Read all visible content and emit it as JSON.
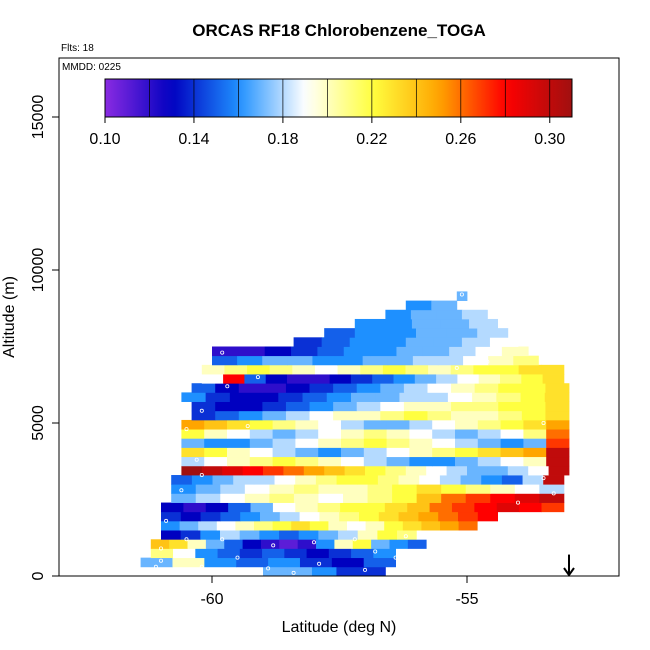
{
  "chart_data": {
    "type": "heatmap",
    "title": "ORCAS RF18 Chlorobenzene_TOGA",
    "annotations": [
      "Flts: 18",
      "MMDD: 0225"
    ],
    "xlabel": "Latitude (deg N)",
    "ylabel": "Altitude (m)",
    "xlim": [
      -63,
      -52
    ],
    "ylim": [
      0,
      17000
    ],
    "x_ticks": [
      -60,
      -55
    ],
    "y_ticks": [
      0,
      5000,
      10000,
      15000
    ],
    "colorbar": {
      "vmin": 0.1,
      "vmax": 0.31,
      "tick_values": [
        0.1,
        0.14,
        0.18,
        0.22,
        0.26,
        0.3
      ],
      "tick_labels": [
        "0.10",
        "0.14",
        "0.18",
        "0.22",
        "0.26",
        "0.30"
      ],
      "colors": [
        "#8a2be2",
        "#0000c0",
        "#1e90ff",
        "#ffffff",
        "#ffff40",
        "#ffa500",
        "#ff0000",
        "#a01010"
      ]
    },
    "arrow_marker": {
      "lat": -53.0,
      "alt": 700
    },
    "bands": [
      {
        "alt_lo": 0,
        "alt_hi": 300,
        "lat_lo": -59.0,
        "lat_hi": -56.6,
        "values": [
          0.17,
          0.17,
          0.16,
          0.14,
          0.14
        ]
      },
      {
        "alt_lo": 300,
        "alt_hi": 600,
        "lat_lo": -61.4,
        "lat_hi": -56.4,
        "values": [
          0.17,
          0.2,
          0.16,
          0.15,
          0.16,
          0.14,
          0.13,
          0.15
        ]
      },
      {
        "alt_lo": 600,
        "alt_hi": 900,
        "lat_lo": -61.2,
        "lat_hi": -56.4,
        "values": [
          0.21,
          0.19,
          0.16,
          0.15,
          0.14,
          0.15,
          0.14,
          0.13,
          0.14,
          0.15,
          0.16
        ]
      },
      {
        "alt_lo": 900,
        "alt_hi": 1200,
        "lat_lo": -61.2,
        "lat_hi": -55.8,
        "values": [
          0.24,
          0.23,
          0.2,
          0.17,
          0.15,
          0.13,
          0.12,
          0.11,
          0.12,
          0.16,
          0.2,
          0.22,
          0.17,
          0.16,
          0.15
        ]
      },
      {
        "alt_lo": 1200,
        "alt_hi": 1500,
        "lat_lo": -61.0,
        "lat_hi": -55.6,
        "values": [
          0.13,
          0.14,
          0.16,
          0.18,
          0.17,
          0.16,
          0.15,
          0.16,
          0.17,
          0.18,
          0.2,
          0.22,
          0.21,
          0.19
        ]
      },
      {
        "alt_lo": 1500,
        "alt_hi": 1800,
        "lat_lo": -61.0,
        "lat_hi": -54.8,
        "values": [
          0.16,
          0.17,
          0.18,
          0.19,
          0.2,
          0.21,
          0.22,
          0.23,
          0.22,
          0.2,
          0.19,
          0.2,
          0.22,
          0.23,
          0.24,
          0.25,
          0.26
        ]
      },
      {
        "alt_lo": 1800,
        "alt_hi": 2100,
        "lat_lo": -61.0,
        "lat_hi": -54.4,
        "values": [
          0.14,
          0.13,
          0.14,
          0.15,
          0.16,
          0.17,
          0.18,
          0.19,
          0.2,
          0.21,
          0.22,
          0.23,
          0.24,
          0.25,
          0.26,
          0.27,
          0.28
        ]
      },
      {
        "alt_lo": 2100,
        "alt_hi": 2400,
        "lat_lo": -61.0,
        "lat_hi": -53.1,
        "values": [
          0.13,
          0.12,
          0.13,
          0.15,
          0.17,
          0.19,
          0.2,
          0.21,
          0.22,
          0.22,
          0.23,
          0.24,
          0.26,
          0.27,
          0.28,
          0.29,
          0.28,
          0.27
        ]
      },
      {
        "alt_lo": 2400,
        "alt_hi": 2700,
        "lat_lo": -60.8,
        "lat_hi": -53.1,
        "values": [
          0.17,
          0.18,
          0.19,
          0.2,
          0.21,
          0.2,
          0.19,
          0.2,
          0.21,
          0.22,
          0.24,
          0.26,
          0.27,
          0.28,
          0.29,
          0.3
        ]
      },
      {
        "alt_lo": 2700,
        "alt_hi": 3000,
        "lat_lo": -60.8,
        "lat_hi": -53.1,
        "values": [
          0.16,
          0.17,
          0.18,
          0.19,
          0.2,
          0.21,
          0.2,
          0.2,
          0.21,
          0.22,
          0.23,
          0.22,
          0.21,
          0.2,
          0.19,
          0.18
        ]
      },
      {
        "alt_lo": 3000,
        "alt_hi": 3300,
        "lat_lo": -60.8,
        "lat_hi": -53.1,
        "values": [
          0.15,
          0.16,
          0.17,
          0.18,
          0.18,
          0.19,
          0.2,
          0.21,
          0.22,
          0.22,
          0.21,
          0.2,
          0.19,
          0.18,
          0.17,
          0.16,
          0.15,
          0.18,
          0.3
        ]
      },
      {
        "alt_lo": 3300,
        "alt_hi": 3600,
        "lat_lo": -60.6,
        "lat_hi": -53.0,
        "values": [
          0.31,
          0.3,
          0.29,
          0.28,
          0.27,
          0.26,
          0.25,
          0.24,
          0.23,
          0.22,
          0.21,
          0.2,
          0.19,
          0.18,
          0.17,
          0.17,
          0.18,
          0.19,
          0.3
        ]
      },
      {
        "alt_lo": 3600,
        "alt_hi": 3900,
        "lat_lo": -60.6,
        "lat_hi": -53.0,
        "values": [
          0.18,
          0.19,
          0.2,
          0.21,
          0.22,
          0.21,
          0.2,
          0.19,
          0.18,
          0.17,
          0.16,
          0.16,
          0.17,
          0.18,
          0.19,
          0.2,
          0.3
        ]
      },
      {
        "alt_lo": 3900,
        "alt_hi": 4200,
        "lat_lo": -60.6,
        "lat_hi": -53.0,
        "values": [
          0.23,
          0.22,
          0.2,
          0.19,
          0.18,
          0.17,
          0.16,
          0.17,
          0.18,
          0.19,
          0.2,
          0.21,
          0.22,
          0.23,
          0.24,
          0.25,
          0.3
        ]
      },
      {
        "alt_lo": 4200,
        "alt_hi": 4500,
        "lat_lo": -60.6,
        "lat_hi": -53.0,
        "values": [
          0.17,
          0.16,
          0.16,
          0.17,
          0.18,
          0.19,
          0.2,
          0.21,
          0.22,
          0.21,
          0.2,
          0.19,
          0.18,
          0.17,
          0.16,
          0.17,
          0.27
        ]
      },
      {
        "alt_lo": 4500,
        "alt_hi": 4800,
        "lat_lo": -60.6,
        "lat_hi": -53.0,
        "values": [
          0.22,
          0.2,
          0.19,
          0.18,
          0.17,
          0.18,
          0.19,
          0.2,
          0.21,
          0.2,
          0.19,
          0.18,
          0.17,
          0.18,
          0.19,
          0.21,
          0.26
        ]
      },
      {
        "alt_lo": 4800,
        "alt_hi": 5100,
        "lat_lo": -60.6,
        "lat_hi": -53.0,
        "values": [
          0.25,
          0.24,
          0.23,
          0.22,
          0.21,
          0.2,
          0.19,
          0.18,
          0.17,
          0.17,
          0.18,
          0.19,
          0.2,
          0.21,
          0.22,
          0.23,
          0.25
        ]
      },
      {
        "alt_lo": 5100,
        "alt_hi": 5400,
        "lat_lo": -60.4,
        "lat_hi": -53.0,
        "values": [
          0.14,
          0.15,
          0.16,
          0.17,
          0.18,
          0.19,
          0.2,
          0.2,
          0.21,
          0.22,
          0.21,
          0.2,
          0.2,
          0.21,
          0.22,
          0.23
        ]
      },
      {
        "alt_lo": 5400,
        "alt_hi": 5700,
        "lat_lo": -60.4,
        "lat_hi": -53.0,
        "values": [
          0.14,
          0.13,
          0.13,
          0.14,
          0.15,
          0.16,
          0.17,
          0.18,
          0.19,
          0.2,
          0.2,
          0.21,
          0.21,
          0.22,
          0.22,
          0.23
        ]
      },
      {
        "alt_lo": 5700,
        "alt_hi": 6000,
        "lat_lo": -60.6,
        "lat_hi": -53.0,
        "values": [
          0.16,
          0.14,
          0.13,
          0.13,
          0.14,
          0.15,
          0.16,
          0.17,
          0.17,
          0.18,
          0.18,
          0.19,
          0.2,
          0.21,
          0.22,
          0.23
        ]
      },
      {
        "alt_lo": 6000,
        "alt_hi": 6300,
        "lat_lo": -60.4,
        "lat_hi": -53.0,
        "values": [
          0.15,
          0.13,
          0.12,
          0.12,
          0.13,
          0.14,
          0.15,
          0.16,
          0.17,
          0.18,
          0.19,
          0.2,
          0.21,
          0.22,
          0.22,
          0.23
        ]
      },
      {
        "alt_lo": 6300,
        "alt_hi": 6600,
        "lat_lo": -60.2,
        "lat_hi": -53.1,
        "values": [
          0.19,
          0.28,
          0.15,
          0.13,
          0.12,
          0.12,
          0.13,
          0.14,
          0.15,
          0.16,
          0.17,
          0.18,
          0.19,
          0.2,
          0.21,
          0.22,
          0.23
        ]
      },
      {
        "alt_lo": 6600,
        "alt_hi": 6900,
        "lat_lo": -60.2,
        "lat_hi": -53.1,
        "values": [
          0.2,
          0.21,
          0.22,
          0.21,
          0.2,
          0.19,
          0.2,
          0.21,
          0.22,
          0.21,
          0.2,
          0.21,
          0.22,
          0.22,
          0.23,
          0.23
        ]
      },
      {
        "alt_lo": 6900,
        "alt_hi": 7200,
        "lat_lo": -60.0,
        "lat_hi": -53.6,
        "values": [
          0.15,
          0.16,
          0.17,
          0.17,
          0.16,
          0.16,
          0.17,
          0.17,
          0.18,
          0.18,
          0.19,
          0.2,
          0.21
        ]
      },
      {
        "alt_lo": 7200,
        "alt_hi": 7500,
        "lat_lo": -60.0,
        "lat_hi": -53.8,
        "values": [
          0.12,
          0.12,
          0.13,
          0.14,
          0.15,
          0.16,
          0.16,
          0.17,
          0.17,
          0.18,
          0.19,
          0.2
        ]
      },
      {
        "alt_lo": 7500,
        "alt_hi": 7800,
        "lat_lo": -58.4,
        "lat_hi": -54.0,
        "values": [
          0.14,
          0.15,
          0.16,
          0.16,
          0.17,
          0.17,
          0.18,
          0.19
        ]
      },
      {
        "alt_lo": 7800,
        "alt_hi": 8100,
        "lat_lo": -57.8,
        "lat_hi": -54.2,
        "values": [
          0.15,
          0.16,
          0.16,
          0.17,
          0.17,
          0.18
        ]
      },
      {
        "alt_lo": 8100,
        "alt_hi": 8400,
        "lat_lo": -57.2,
        "lat_hi": -54.4,
        "values": [
          0.16,
          0.16,
          0.17,
          0.17,
          0.18
        ]
      },
      {
        "alt_lo": 8400,
        "alt_hi": 8700,
        "lat_lo": -56.6,
        "lat_hi": -54.6,
        "values": [
          0.16,
          0.17,
          0.17,
          0.18
        ]
      },
      {
        "alt_lo": 8700,
        "alt_hi": 9000,
        "lat_lo": -56.2,
        "lat_hi": -55.2,
        "values": [
          0.16,
          0.17
        ]
      },
      {
        "alt_lo": 9000,
        "alt_hi": 9300,
        "lat_lo": -55.2,
        "lat_hi": -55.0,
        "values": [
          0.17
        ]
      }
    ],
    "markers": [
      {
        "lat": -61.1,
        "alt": 300
      },
      {
        "lat": -61.0,
        "alt": 500
      },
      {
        "lat": -60.2,
        "alt": 300
      },
      {
        "lat": -59.5,
        "alt": 600
      },
      {
        "lat": -58.9,
        "alt": 250
      },
      {
        "lat": -58.4,
        "alt": 100
      },
      {
        "lat": -57.9,
        "alt": 400
      },
      {
        "lat": -57.0,
        "alt": 200
      },
      {
        "lat": -56.4,
        "alt": 600
      },
      {
        "lat": -56.0,
        "alt": 200
      },
      {
        "lat": -61.0,
        "alt": 900
      },
      {
        "lat": -60.5,
        "alt": 1200
      },
      {
        "lat": -59.8,
        "alt": 1200
      },
      {
        "lat": -58.8,
        "alt": 1000
      },
      {
        "lat": -58.0,
        "alt": 1100
      },
      {
        "lat": -57.2,
        "alt": 1200
      },
      {
        "lat": -56.8,
        "alt": 800
      },
      {
        "lat": -56.2,
        "alt": 1300
      },
      {
        "lat": -55.5,
        "alt": 1100
      },
      {
        "lat": -60.9,
        "alt": 1800
      },
      {
        "lat": -60.6,
        "alt": 2800
      },
      {
        "lat": -60.2,
        "alt": 3300
      },
      {
        "lat": -54.0,
        "alt": 2400
      },
      {
        "lat": -53.3,
        "alt": 2700
      },
      {
        "lat": -53.5,
        "alt": 3200
      },
      {
        "lat": -60.3,
        "alt": 3800
      },
      {
        "lat": -60.5,
        "alt": 4800
      },
      {
        "lat": -59.3,
        "alt": 4900
      },
      {
        "lat": -53.5,
        "alt": 5000
      },
      {
        "lat": -60.2,
        "alt": 5400
      },
      {
        "lat": -59.7,
        "alt": 6200
      },
      {
        "lat": -59.1,
        "alt": 6500
      },
      {
        "lat": -55.2,
        "alt": 6800
      },
      {
        "lat": -54.6,
        "alt": 7000
      },
      {
        "lat": -59.8,
        "alt": 7300
      },
      {
        "lat": -55.1,
        "alt": 9200
      }
    ]
  },
  "colors": {
    "marker": "#ffffff",
    "axis": "#000000"
  }
}
